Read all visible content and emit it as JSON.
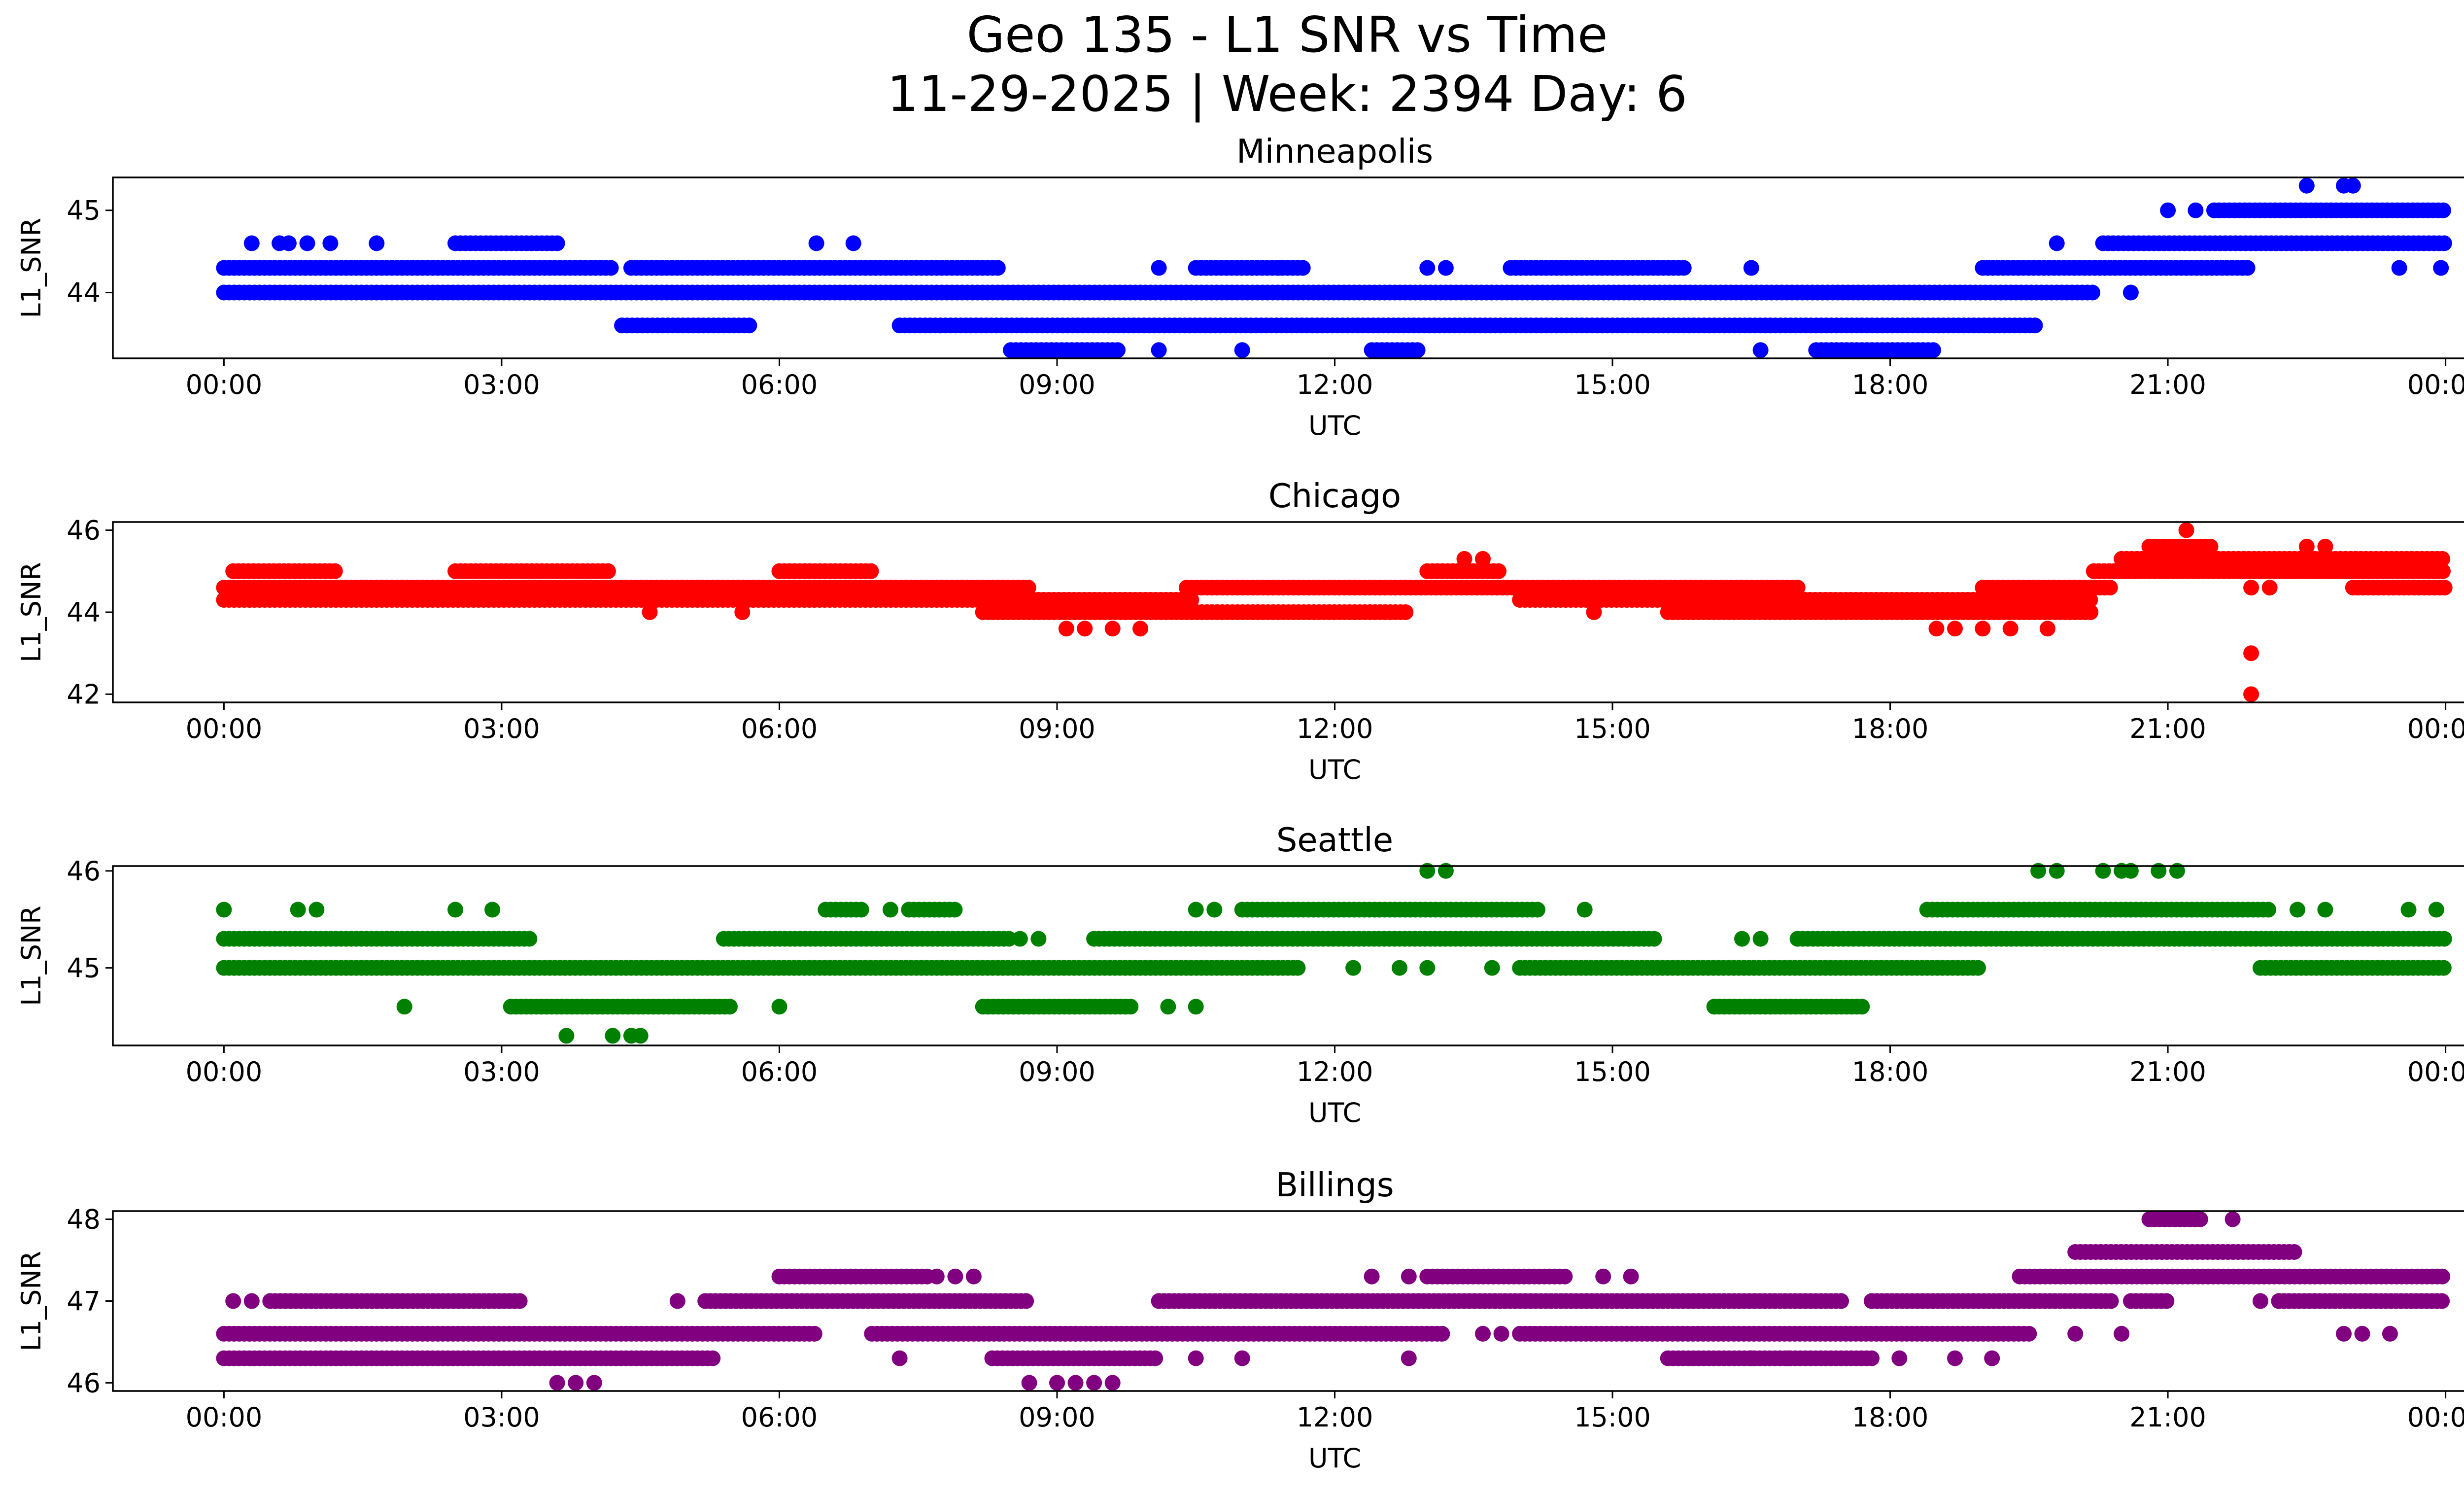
{
  "figure": {
    "title_line1": "Geo 135 - L1 SNR vs Time",
    "title_line2": "11-29-2025 | Week: 2394 Day: 6"
  },
  "chart_data": [
    {
      "type": "scatter",
      "title": "Minneapolis",
      "xlabel": "UTC",
      "ylabel": "L1_SNR",
      "color": "#0000ff",
      "x_range_hours": [
        -1.2,
        25.2
      ],
      "ylim": [
        43.2,
        45.4
      ],
      "yticks": [
        44,
        45
      ],
      "x_tick_labels": [
        "00:00",
        "03:00",
        "06:00",
        "09:00",
        "12:00",
        "15:00",
        "18:00",
        "21:00",
        "00:00"
      ],
      "bands": [
        {
          "y": 44.3,
          "x": [
            [
              0,
              4.2
            ],
            [
              4.4,
              8.4
            ],
            [
              10.5,
              11.7
            ],
            [
              13.9,
              15.8
            ],
            [
              19.0,
              21.9
            ]
          ]
        },
        {
          "y": 44.0,
          "x": [
            [
              0,
              20.2
            ]
          ]
        },
        {
          "y": 43.6,
          "x": [
            [
              4.3,
              5.7
            ],
            [
              7.3,
              19.6
            ]
          ]
        },
        {
          "y": 43.3,
          "x": [
            [
              8.5,
              9.7
            ],
            [
              12.4,
              12.9
            ],
            [
              17.2,
              18.5
            ]
          ]
        },
        {
          "y": 44.6,
          "x": [
            [
              2.5,
              3.6
            ],
            [
              20.3,
              24.0
            ]
          ]
        },
        {
          "y": 45.0,
          "x": [
            [
              21.5,
              24.0
            ]
          ]
        }
      ],
      "points": [
        [
          0.3,
          44.6
        ],
        [
          0.6,
          44.6
        ],
        [
          0.7,
          44.6
        ],
        [
          0.9,
          44.6
        ],
        [
          1.15,
          44.6
        ],
        [
          1.65,
          44.6
        ],
        [
          6.4,
          44.6
        ],
        [
          6.8,
          44.6
        ],
        [
          10.1,
          44.3
        ],
        [
          11.4,
          44.3
        ],
        [
          13.0,
          44.3
        ],
        [
          13.2,
          44.3
        ],
        [
          16.5,
          44.3
        ],
        [
          19.8,
          44.6
        ],
        [
          20.6,
          44.0
        ],
        [
          21.0,
          45.0
        ],
        [
          21.3,
          45.0
        ],
        [
          22.5,
          45.3
        ],
        [
          22.9,
          45.3
        ],
        [
          23.0,
          45.3
        ],
        [
          23.5,
          44.3
        ],
        [
          23.95,
          44.3
        ],
        [
          10.1,
          43.3
        ],
        [
          11.0,
          43.3
        ],
        [
          16.6,
          43.3
        ]
      ]
    },
    {
      "type": "scatter",
      "title": "Chicago",
      "xlabel": "UTC",
      "ylabel": "L1_SNR",
      "color": "#ff0000",
      "x_range_hours": [
        -1.2,
        25.2
      ],
      "ylim": [
        41.8,
        46.2
      ],
      "yticks": [
        42,
        44,
        46
      ],
      "x_tick_labels": [
        "00:00",
        "03:00",
        "06:00",
        "09:00",
        "12:00",
        "15:00",
        "18:00",
        "21:00",
        "00:00"
      ],
      "bands": [
        {
          "y": 44.3,
          "x": [
            [
              0,
              10.5
            ],
            [
              14.0,
              20.2
            ]
          ]
        },
        {
          "y": 44.6,
          "x": [
            [
              0,
              8.7
            ],
            [
              10.4,
              17.0
            ],
            [
              19.0,
              20.4
            ]
          ]
        },
        {
          "y": 45.0,
          "x": [
            [
              0.1,
              1.2
            ],
            [
              2.5,
              4.2
            ],
            [
              6.0,
              7.0
            ],
            [
              13.0,
              13.8
            ],
            [
              20.2,
              21.0
            ],
            [
              22.3,
              23.2
            ]
          ]
        },
        {
          "y": 44.0,
          "x": [
            [
              8.2,
              12.8
            ],
            [
              15.6,
              20.2
            ]
          ]
        },
        {
          "y": 45.3,
          "x": [
            [
              20.5,
              24.0
            ]
          ]
        },
        {
          "y": 44.6,
          "x": [
            [
              23.0,
              24.0
            ]
          ]
        },
        {
          "y": 45.0,
          "x": [
            [
              21.0,
              24.0
            ]
          ]
        },
        {
          "y": 45.6,
          "x": [
            [
              20.8,
              21.5
            ]
          ]
        }
      ],
      "points": [
        [
          21.2,
          46.0
        ],
        [
          22.5,
          45.6
        ],
        [
          22.7,
          45.6
        ],
        [
          13.4,
          45.3
        ],
        [
          13.6,
          45.3
        ],
        [
          9.1,
          43.6
        ],
        [
          9.3,
          43.6
        ],
        [
          9.6,
          43.6
        ],
        [
          9.9,
          43.6
        ],
        [
          18.5,
          43.6
        ],
        [
          18.7,
          43.6
        ],
        [
          19.0,
          43.6
        ],
        [
          19.3,
          43.6
        ],
        [
          19.7,
          43.6
        ],
        [
          21.9,
          43.0
        ],
        [
          21.9,
          42.0
        ],
        [
          21.9,
          44.6
        ],
        [
          22.1,
          44.6
        ],
        [
          4.6,
          44.0
        ],
        [
          5.6,
          44.0
        ],
        [
          14.8,
          44.0
        ]
      ]
    },
    {
      "type": "scatter",
      "title": "Seattle",
      "xlabel": "UTC",
      "ylabel": "L1_SNR",
      "color": "#008000",
      "x_range_hours": [
        -1.2,
        25.2
      ],
      "ylim": [
        44.2,
        46.05
      ],
      "yticks": [
        45,
        46
      ],
      "x_tick_labels": [
        "00:00",
        "03:00",
        "06:00",
        "09:00",
        "12:00",
        "15:00",
        "18:00",
        "21:00",
        "00:00"
      ],
      "bands": [
        {
          "y": 45.3,
          "x": [
            [
              0,
              3.3
            ],
            [
              5.4,
              8.5
            ],
            [
              9.4,
              15.5
            ],
            [
              17.0,
              24.0
            ]
          ]
        },
        {
          "y": 45.0,
          "x": [
            [
              0,
              11.6
            ],
            [
              14.0,
              19.0
            ],
            [
              22.0,
              24.0
            ]
          ]
        },
        {
          "y": 44.6,
          "x": [
            [
              3.1,
              5.5
            ],
            [
              8.2,
              9.8
            ],
            [
              16.1,
              17.7
            ]
          ]
        },
        {
          "y": 45.6,
          "x": [
            [
              6.5,
              6.9
            ],
            [
              7.4,
              7.9
            ],
            [
              11.0,
              14.2
            ],
            [
              18.4,
              22.1
            ]
          ]
        }
      ],
      "points": [
        [
          0.0,
          45.6
        ],
        [
          0.8,
          45.6
        ],
        [
          1.0,
          45.6
        ],
        [
          2.5,
          45.6
        ],
        [
          2.9,
          45.6
        ],
        [
          7.2,
          45.6
        ],
        [
          10.5,
          45.6
        ],
        [
          10.7,
          45.6
        ],
        [
          14.7,
          45.6
        ],
        [
          22.4,
          45.6
        ],
        [
          22.7,
          45.6
        ],
        [
          23.6,
          45.6
        ],
        [
          23.9,
          45.6
        ],
        [
          13.0,
          46.0
        ],
        [
          13.2,
          46.0
        ],
        [
          19.6,
          46.0
        ],
        [
          19.8,
          46.0
        ],
        [
          20.3,
          46.0
        ],
        [
          20.5,
          46.0
        ],
        [
          20.6,
          46.0
        ],
        [
          20.9,
          46.0
        ],
        [
          21.1,
          46.0
        ],
        [
          3.7,
          44.3
        ],
        [
          4.2,
          44.3
        ],
        [
          4.4,
          44.3
        ],
        [
          4.5,
          44.3
        ],
        [
          1.95,
          44.6
        ],
        [
          6.0,
          44.6
        ],
        [
          10.2,
          44.6
        ],
        [
          10.5,
          44.6
        ],
        [
          11.6,
          45.0
        ],
        [
          12.2,
          45.0
        ],
        [
          12.7,
          45.0
        ],
        [
          13.0,
          45.0
        ],
        [
          13.7,
          45.0
        ],
        [
          8.6,
          45.3
        ],
        [
          8.8,
          45.3
        ],
        [
          16.4,
          45.3
        ],
        [
          16.6,
          45.3
        ],
        [
          17.0,
          45.3
        ]
      ]
    },
    {
      "type": "scatter",
      "title": "Billings",
      "xlabel": "UTC",
      "ylabel": "L1_SNR",
      "color": "#800080",
      "x_range_hours": [
        -1.2,
        25.2
      ],
      "ylim": [
        45.9,
        48.1
      ],
      "yticks": [
        46,
        47,
        48
      ],
      "x_tick_labels": [
        "00:00",
        "03:00",
        "06:00",
        "09:00",
        "12:00",
        "15:00",
        "18:00",
        "21:00",
        "00:00"
      ],
      "bands": [
        {
          "y": 46.6,
          "x": [
            [
              0,
              6.4
            ],
            [
              7.0,
              13.2
            ],
            [
              14.0,
              19.5
            ]
          ]
        },
        {
          "y": 46.3,
          "x": [
            [
              0,
              5.3
            ],
            [
              8.3,
              10.1
            ],
            [
              15.6,
              17.8
            ]
          ]
        },
        {
          "y": 47.0,
          "x": [
            [
              0.5,
              3.2
            ],
            [
              5.2,
              8.7
            ],
            [
              10.1,
              17.5
            ],
            [
              17.8,
              20.4
            ],
            [
              20.6,
              21.0
            ],
            [
              22.2,
              24.0
            ]
          ]
        },
        {
          "y": 47.3,
          "x": [
            [
              6.0,
              7.6
            ],
            [
              13.0,
              14.5
            ],
            [
              19.4,
              24.0
            ]
          ]
        },
        {
          "y": 47.6,
          "x": [
            [
              20.0,
              22.4
            ]
          ]
        },
        {
          "y": 48.0,
          "x": [
            [
              20.8,
              21.4
            ]
          ]
        }
      ],
      "points": [
        [
          0.1,
          47.0
        ],
        [
          0.3,
          47.0
        ],
        [
          4.9,
          47.0
        ],
        [
          7.7,
          47.3
        ],
        [
          7.9,
          47.3
        ],
        [
          8.1,
          47.3
        ],
        [
          3.6,
          46.0
        ],
        [
          3.8,
          46.0
        ],
        [
          4.0,
          46.0
        ],
        [
          8.7,
          46.0
        ],
        [
          9.0,
          46.0
        ],
        [
          9.2,
          46.0
        ],
        [
          9.4,
          46.0
        ],
        [
          9.6,
          46.0
        ],
        [
          7.3,
          46.3
        ],
        [
          10.5,
          46.3
        ],
        [
          11.0,
          46.3
        ],
        [
          12.8,
          46.3
        ],
        [
          16.5,
          46.3
        ],
        [
          16.9,
          46.3
        ],
        [
          18.1,
          46.3
        ],
        [
          18.7,
          46.3
        ],
        [
          19.1,
          46.3
        ],
        [
          12.4,
          47.3
        ],
        [
          12.8,
          47.3
        ],
        [
          14.9,
          47.3
        ],
        [
          15.2,
          47.3
        ],
        [
          20.0,
          46.6
        ],
        [
          20.5,
          46.6
        ],
        [
          22.9,
          46.6
        ],
        [
          23.1,
          46.6
        ],
        [
          23.4,
          46.6
        ],
        [
          9.2,
          46.6
        ],
        [
          13.6,
          46.6
        ],
        [
          13.8,
          46.6
        ],
        [
          21.7,
          48.0
        ],
        [
          22.0,
          47.0
        ],
        [
          22.2,
          47.0
        ]
      ]
    }
  ]
}
